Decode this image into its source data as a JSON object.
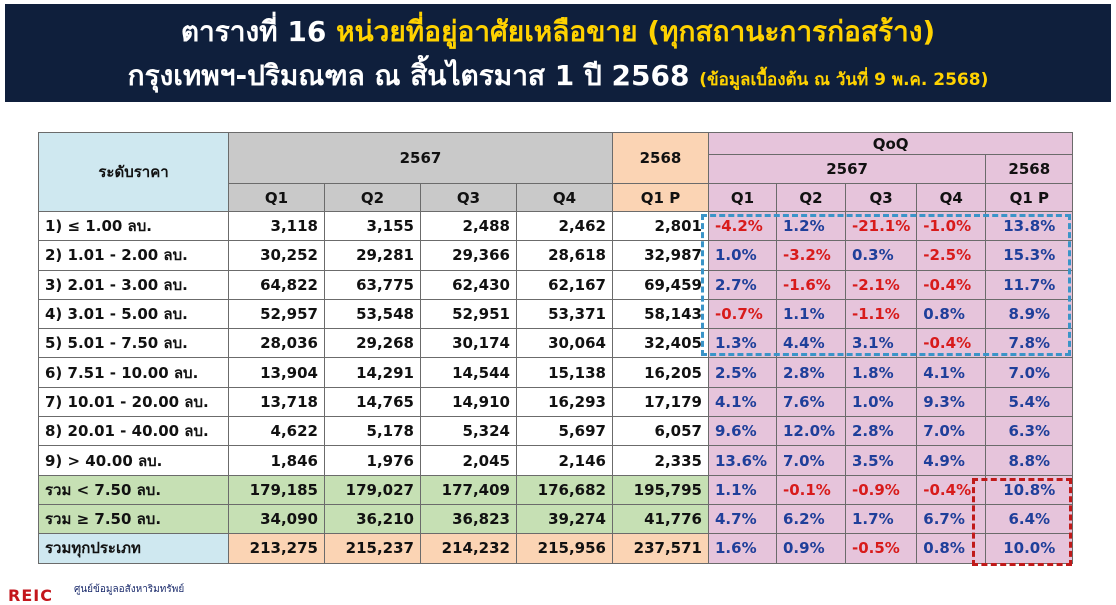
{
  "title": {
    "line1_prefix": "ตารางที่ 16",
    "line1_highlight": "หน่วยที่อยู่อาศัยเหลือขาย (ทุกสถานะการก่อสร้าง)",
    "line2_main": "กรุงเทพฯ-ปริมณฑล ณ สิ้นไตรมาส 1 ปี 2568",
    "line2_note": "(ข้อมูลเบื้องต้น ณ วันที่ 9 พ.ค. 2568)"
  },
  "header": {
    "price_level": "ระดับราคา",
    "year_2567": "2567",
    "year_2568": "2568",
    "qoq": "QoQ",
    "qoq_2567": "2567",
    "qoq_2568": "2568",
    "q1": "Q1",
    "q2": "Q2",
    "q3": "Q3",
    "q4": "Q4",
    "q1p": "Q1 P",
    "qq1": "Q1",
    "qq2": "Q2",
    "qq3": "Q3",
    "qq4": "Q4",
    "qq1p": "Q1 P"
  },
  "rows": [
    {
      "label": "1) ≤ 1.00 ลบ.",
      "v": [
        "3,118",
        "3,155",
        "2,488",
        "2,462",
        "2,801"
      ],
      "q": [
        "-4.2%",
        "1.2%",
        "-21.1%",
        "-1.0%",
        "13.8%"
      ]
    },
    {
      "label": "2) 1.01 - 2.00 ลบ.",
      "v": [
        "30,252",
        "29,281",
        "29,366",
        "28,618",
        "32,987"
      ],
      "q": [
        "1.0%",
        "-3.2%",
        "0.3%",
        "-2.5%",
        "15.3%"
      ]
    },
    {
      "label": "3) 2.01 - 3.00 ลบ.",
      "v": [
        "64,822",
        "63,775",
        "62,430",
        "62,167",
        "69,459"
      ],
      "q": [
        "2.7%",
        "-1.6%",
        "-2.1%",
        "-0.4%",
        "11.7%"
      ]
    },
    {
      "label": "4) 3.01 - 5.00 ลบ.",
      "v": [
        "52,957",
        "53,548",
        "52,951",
        "53,371",
        "58,143"
      ],
      "q": [
        "-0.7%",
        "1.1%",
        "-1.1%",
        "0.8%",
        "8.9%"
      ]
    },
    {
      "label": "5) 5.01 - 7.50 ลบ.",
      "v": [
        "28,036",
        "29,268",
        "30,174",
        "30,064",
        "32,405"
      ],
      "q": [
        "1.3%",
        "4.4%",
        "3.1%",
        "-0.4%",
        "7.8%"
      ]
    },
    {
      "label": "6) 7.51 - 10.00 ลบ.",
      "v": [
        "13,904",
        "14,291",
        "14,544",
        "15,138",
        "16,205"
      ],
      "q": [
        "2.5%",
        "2.8%",
        "1.8%",
        "4.1%",
        "7.0%"
      ]
    },
    {
      "label": "7) 10.01 - 20.00 ลบ.",
      "v": [
        "13,718",
        "14,765",
        "14,910",
        "16,293",
        "17,179"
      ],
      "q": [
        "4.1%",
        "7.6%",
        "1.0%",
        "9.3%",
        "5.4%"
      ]
    },
    {
      "label": "8) 20.01 - 40.00 ลบ.",
      "v": [
        "4,622",
        "5,178",
        "5,324",
        "5,697",
        "6,057"
      ],
      "q": [
        "9.6%",
        "12.0%",
        "2.8%",
        "7.0%",
        "6.3%"
      ]
    },
    {
      "label": "9) > 40.00 ลบ.",
      "v": [
        "1,846",
        "1,976",
        "2,045",
        "2,146",
        "2,335"
      ],
      "q": [
        "13.6%",
        "7.0%",
        "3.5%",
        "4.9%",
        "8.8%"
      ]
    }
  ],
  "totals": [
    {
      "label": "รวม < 7.50 ลบ.",
      "v": [
        "179,185",
        "179,027",
        "177,409",
        "176,682",
        "195,795"
      ],
      "q": [
        "1.1%",
        "-0.1%",
        "-0.9%",
        "-0.4%",
        "10.8%"
      ],
      "style": "green"
    },
    {
      "label": "รวม ≥ 7.50 ลบ.",
      "v": [
        "34,090",
        "36,210",
        "36,823",
        "39,274",
        "41,776"
      ],
      "q": [
        "4.7%",
        "6.2%",
        "1.7%",
        "6.7%",
        "6.4%"
      ],
      "style": "green"
    },
    {
      "label": "รวมทุกประเภท",
      "v": [
        "213,275",
        "215,237",
        "214,232",
        "215,956",
        "237,571"
      ],
      "q": [
        "1.6%",
        "0.9%",
        "-0.5%",
        "0.8%",
        "10.0%"
      ],
      "style": "total"
    }
  ],
  "footer": {
    "logo_mark": "REIC",
    "logo_text": "ศูนย์ข้อมูลอสังหาริมทรัพย์"
  },
  "colors": {
    "banner_bg": "#0f1f3c",
    "highlight_yellow": "#ffd200",
    "positive_blue": "#1f3f9a",
    "negative_red": "#d81b1b",
    "header_blue": "#cfe8f0",
    "header_gray": "#c9c9c9",
    "peach": "#fbd4b4",
    "pink": "#e6c4db",
    "green": "#c6e0b4",
    "dashed_blue": "#3a94c8",
    "dashed_red": "#c01a1a"
  }
}
